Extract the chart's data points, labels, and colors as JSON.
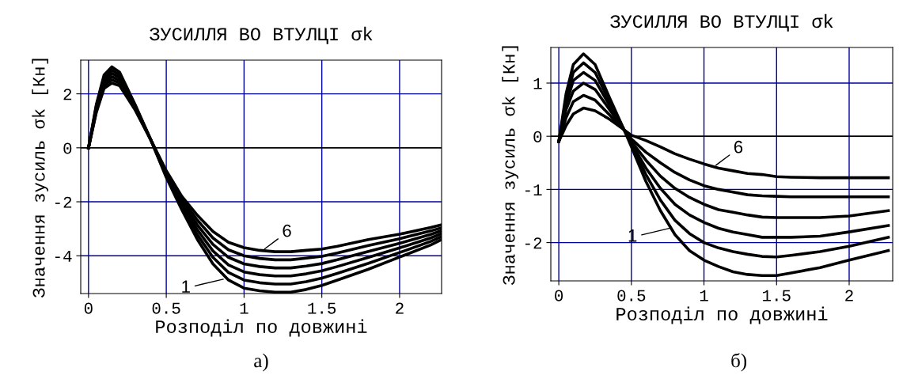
{
  "chart_data": [
    {
      "type": "line",
      "title": "ЗУСИЛЛЯ ВО ВТУЛЦІ σk",
      "xlabel": "Розподіл по довжині",
      "ylabel": "Значення зусиль σk [Кн]",
      "x": [
        0,
        0.05,
        0.1,
        0.15,
        0.2,
        0.3,
        0.4,
        0.5,
        0.6,
        0.7,
        0.8,
        0.9,
        1.0,
        1.1,
        1.2,
        1.3,
        1.4,
        1.5,
        1.6,
        1.8,
        2.0,
        2.2,
        2.27
      ],
      "series": [
        {
          "color": "#000000",
          "values": [
            0,
            1.6,
            2.7,
            3.0,
            2.8,
            1.6,
            0.3,
            -1.1,
            -2.3,
            -3.4,
            -4.3,
            -4.9,
            -5.2,
            -5.3,
            -5.35,
            -5.35,
            -5.25,
            -5.1,
            -4.9,
            -4.5,
            -4.05,
            -3.6,
            -3.4
          ]
        },
        {
          "color": "#000000",
          "values": [
            0,
            1.54,
            2.6,
            2.88,
            2.7,
            1.56,
            0.3,
            -1.05,
            -2.2,
            -3.22,
            -4.06,
            -4.62,
            -4.9,
            -5.0,
            -5.05,
            -5.05,
            -4.96,
            -4.83,
            -4.65,
            -4.28,
            -3.88,
            -3.47,
            -3.29
          ]
        },
        {
          "color": "#000000",
          "values": [
            0,
            1.48,
            2.5,
            2.76,
            2.6,
            1.52,
            0.3,
            -1.0,
            -2.1,
            -3.04,
            -3.82,
            -4.34,
            -4.6,
            -4.7,
            -4.75,
            -4.75,
            -4.67,
            -4.56,
            -4.4,
            -4.06,
            -3.71,
            -3.34,
            -3.18
          ]
        },
        {
          "color": "#000000",
          "values": [
            0,
            1.42,
            2.4,
            2.64,
            2.5,
            1.48,
            0.3,
            -0.95,
            -2.0,
            -2.86,
            -3.58,
            -4.06,
            -4.3,
            -4.4,
            -4.45,
            -4.45,
            -4.38,
            -4.29,
            -4.15,
            -3.84,
            -3.54,
            -3.21,
            -3.07
          ]
        },
        {
          "color": "#000000",
          "values": [
            0,
            1.36,
            2.3,
            2.52,
            2.4,
            1.44,
            0.3,
            -0.9,
            -1.9,
            -2.68,
            -3.34,
            -3.78,
            -4.0,
            -4.1,
            -4.15,
            -4.15,
            -4.09,
            -4.02,
            -3.9,
            -3.62,
            -3.37,
            -3.08,
            -2.96
          ]
        },
        {
          "color": "#000000",
          "values": [
            0,
            1.3,
            2.2,
            2.4,
            2.3,
            1.4,
            0.3,
            -0.85,
            -1.8,
            -2.5,
            -3.1,
            -3.5,
            -3.7,
            -3.8,
            -3.85,
            -3.85,
            -3.8,
            -3.75,
            -3.65,
            -3.4,
            -3.2,
            -2.95,
            -2.85
          ]
        }
      ],
      "xlim": [
        -0.05,
        2.27
      ],
      "ylim": [
        -5.4,
        3.25
      ],
      "xticks": [
        0,
        0.5,
        1,
        1.5,
        2
      ],
      "yticks": [
        -4,
        -2,
        0,
        2
      ],
      "grid": true,
      "legend": false,
      "ref_lines": [
        {
          "axis": "y",
          "value": 0,
          "color": "#000000"
        }
      ],
      "annotations": [
        {
          "text": "6",
          "x": 1.12,
          "y": -3.8
        },
        {
          "text": "1",
          "x": 0.88,
          "y": -4.85
        },
        "а)"
      ]
    },
    {
      "type": "line",
      "title": "ЗУСИЛЛЯ ВО ВТУЛЦІ σk",
      "xlabel": "Розподіл по довжині",
      "ylabel": "Значення зусиль σk [Кн]",
      "x": [
        0,
        0.05,
        0.1,
        0.17,
        0.25,
        0.35,
        0.45,
        0.5,
        0.6,
        0.7,
        0.8,
        0.9,
        1.0,
        1.1,
        1.2,
        1.3,
        1.4,
        1.5,
        1.6,
        1.8,
        2.0,
        2.27
      ],
      "series": [
        {
          "color": "#000000",
          "values": [
            -0.1,
            0.8,
            1.35,
            1.55,
            1.35,
            0.72,
            0.12,
            -0.2,
            -0.85,
            -1.4,
            -1.85,
            -2.15,
            -2.33,
            -2.45,
            -2.55,
            -2.6,
            -2.62,
            -2.62,
            -2.57,
            -2.47,
            -2.33,
            -2.15
          ]
        },
        {
          "color": "#000000",
          "values": [
            -0.1,
            0.7,
            1.2,
            1.38,
            1.2,
            0.65,
            0.12,
            -0.16,
            -0.72,
            -1.2,
            -1.58,
            -1.83,
            -2.0,
            -2.1,
            -2.17,
            -2.22,
            -2.26,
            -2.27,
            -2.24,
            -2.17,
            -2.07,
            -1.9
          ]
        },
        {
          "color": "#000000",
          "values": [
            -0.1,
            0.6,
            1.05,
            1.2,
            1.05,
            0.58,
            0.12,
            -0.13,
            -0.6,
            -0.98,
            -1.28,
            -1.48,
            -1.62,
            -1.73,
            -1.8,
            -1.85,
            -1.9,
            -1.9,
            -1.9,
            -1.88,
            -1.8,
            -1.68
          ]
        },
        {
          "color": "#000000",
          "values": [
            -0.1,
            0.5,
            0.85,
            1.0,
            0.88,
            0.5,
            0.12,
            -0.1,
            -0.45,
            -0.75,
            -0.98,
            -1.15,
            -1.28,
            -1.38,
            -1.43,
            -1.48,
            -1.52,
            -1.53,
            -1.53,
            -1.53,
            -1.5,
            -1.4
          ]
        },
        {
          "color": "#000000",
          "values": [
            -0.1,
            0.35,
            0.65,
            0.77,
            0.68,
            0.4,
            0.12,
            -0.05,
            -0.3,
            -0.5,
            -0.68,
            -0.82,
            -0.93,
            -1.0,
            -1.05,
            -1.1,
            -1.12,
            -1.13,
            -1.14,
            -1.14,
            -1.14,
            -1.14
          ]
        },
        {
          "color": "#000000",
          "values": [
            -0.1,
            0.2,
            0.42,
            0.53,
            0.48,
            0.32,
            0.12,
            0.02,
            -0.08,
            -0.2,
            -0.33,
            -0.43,
            -0.52,
            -0.6,
            -0.65,
            -0.7,
            -0.72,
            -0.76,
            -0.77,
            -0.78,
            -0.78,
            -0.78
          ]
        }
      ],
      "xlim": [
        -0.055,
        2.3
      ],
      "ylim": [
        -2.72,
        1.67
      ],
      "xticks": [
        0,
        0.5,
        1,
        1.5,
        2
      ],
      "yticks": [
        -2,
        -1,
        0,
        1
      ],
      "grid": true,
      "legend": false,
      "ref_lines": [
        {
          "axis": "y",
          "value": 0,
          "color": "#000000"
        }
      ],
      "annotations": [
        {
          "text": "6",
          "x": 1.07,
          "y": -0.57
        },
        {
          "text": "1",
          "x": 0.78,
          "y": -1.72
        },
        "б)"
      ]
    }
  ]
}
